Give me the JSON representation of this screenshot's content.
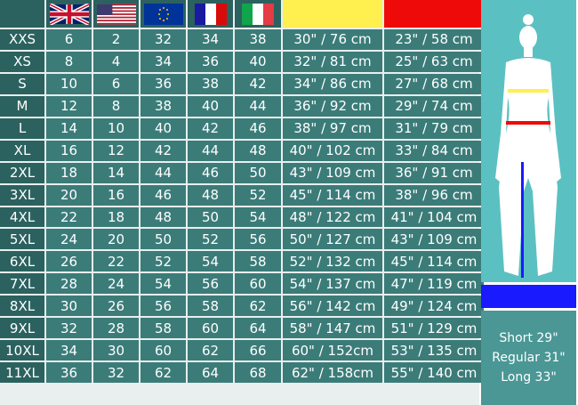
{
  "headers": {
    "uk": "uk-flag",
    "us": "us-flag",
    "eu": "eu-flag",
    "fr": "fr-flag",
    "it": "it-flag",
    "waist_color": "#ffef4f",
    "hip_color": "#ef0a0a"
  },
  "rows": [
    [
      "XXS",
      "6",
      "2",
      "32",
      "34",
      "38",
      "30\" / 76 cm",
      "23\" / 58 cm"
    ],
    [
      "XS",
      "8",
      "4",
      "34",
      "36",
      "40",
      "32\" / 81 cm",
      "25\" / 63 cm"
    ],
    [
      "S",
      "10",
      "6",
      "36",
      "38",
      "42",
      "34\" / 86 cm",
      "27\" / 68 cm"
    ],
    [
      "M",
      "12",
      "8",
      "38",
      "40",
      "44",
      "36\" / 92 cm",
      "29\" / 74 cm"
    ],
    [
      "L",
      "14",
      "10",
      "40",
      "42",
      "46",
      "38\" / 97 cm",
      "31\" / 79 cm"
    ],
    [
      "XL",
      "16",
      "12",
      "42",
      "44",
      "48",
      "40\" / 102 cm",
      "33\" / 84 cm"
    ],
    [
      "2XL",
      "18",
      "14",
      "44",
      "46",
      "50",
      "43\" / 109 cm",
      "36\" / 91 cm"
    ],
    [
      "3XL",
      "20",
      "16",
      "46",
      "48",
      "52",
      "45\" / 114 cm",
      "38\" / 96 cm"
    ],
    [
      "4XL",
      "22",
      "18",
      "48",
      "50",
      "54",
      "48\" / 122 cm",
      "41\" / 104 cm"
    ],
    [
      "5XL",
      "24",
      "20",
      "50",
      "52",
      "56",
      "50\" / 127 cm",
      "43\" / 109 cm"
    ],
    [
      "6XL",
      "26",
      "22",
      "52",
      "54",
      "58",
      "52\" / 132 cm",
      "45\" / 114 cm"
    ],
    [
      "7XL",
      "28",
      "24",
      "54",
      "56",
      "60",
      "54\" / 137 cm",
      "47\" / 119 cm"
    ],
    [
      "8XL",
      "30",
      "26",
      "56",
      "58",
      "62",
      "56\" / 142 cm",
      "49\" / 124 cm"
    ],
    [
      "9XL",
      "32",
      "28",
      "58",
      "60",
      "64",
      "58\" / 147 cm",
      "51\" / 129 cm"
    ],
    [
      "10XL",
      "34",
      "30",
      "60",
      "62",
      "66",
      "60\" / 152cm",
      "53\" / 135 cm"
    ],
    [
      "11XL",
      "36",
      "32",
      "62",
      "64",
      "68",
      "62\" / 158cm",
      "55\" / 140 cm"
    ]
  ],
  "inseam": {
    "short": "Short 29\"",
    "regular": "Regular 31\"",
    "long": "Long 33\"",
    "color": "#1a1aff"
  }
}
